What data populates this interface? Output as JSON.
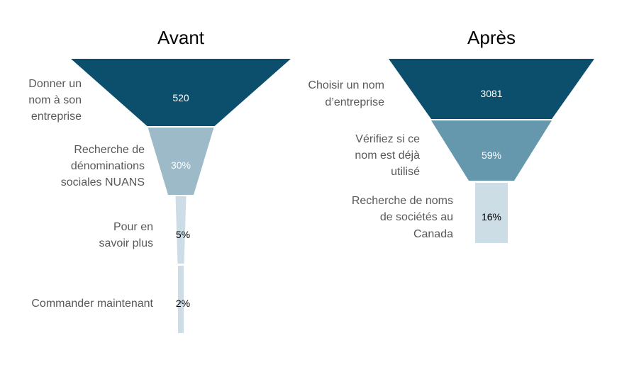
{
  "chart_data": [
    {
      "type": "funnel",
      "title": "Avant",
      "steps": [
        {
          "label": "Donner un nom à son entreprise",
          "value_label": "520",
          "relative_width": 1.0,
          "color": "#0b4f6c",
          "value_color": "#ffffff"
        },
        {
          "label": "Recherche de dénominations sociales NUANS",
          "value_label": "30%",
          "relative_width": 0.3,
          "color": "#9dbac9",
          "value_color": "#ffffff"
        },
        {
          "label": "Pour en savoir plus",
          "value_label": "5%",
          "relative_width": 0.05,
          "color": "#cddde6",
          "value_color": "#000000"
        },
        {
          "label": "Commander maintenant",
          "value_label": "2%",
          "relative_width": 0.02,
          "color": "#cddde6",
          "value_color": "#000000"
        }
      ]
    },
    {
      "type": "funnel",
      "title": "Après",
      "steps": [
        {
          "label": "Choisir un nom d’entreprise",
          "value_label": "3081",
          "relative_width": 1.0,
          "color": "#0b4f6c",
          "value_color": "#ffffff"
        },
        {
          "label": "Vérifiez si ce nom est déjà utilisé",
          "value_label": "59%",
          "relative_width": 0.59,
          "color": "#6597ad",
          "value_color": "#ffffff"
        },
        {
          "label": "Recherche de noms de sociétés au Canada",
          "value_label": "16%",
          "relative_width": 0.16,
          "color": "#cddde6",
          "value_color": "#000000"
        }
      ]
    }
  ]
}
